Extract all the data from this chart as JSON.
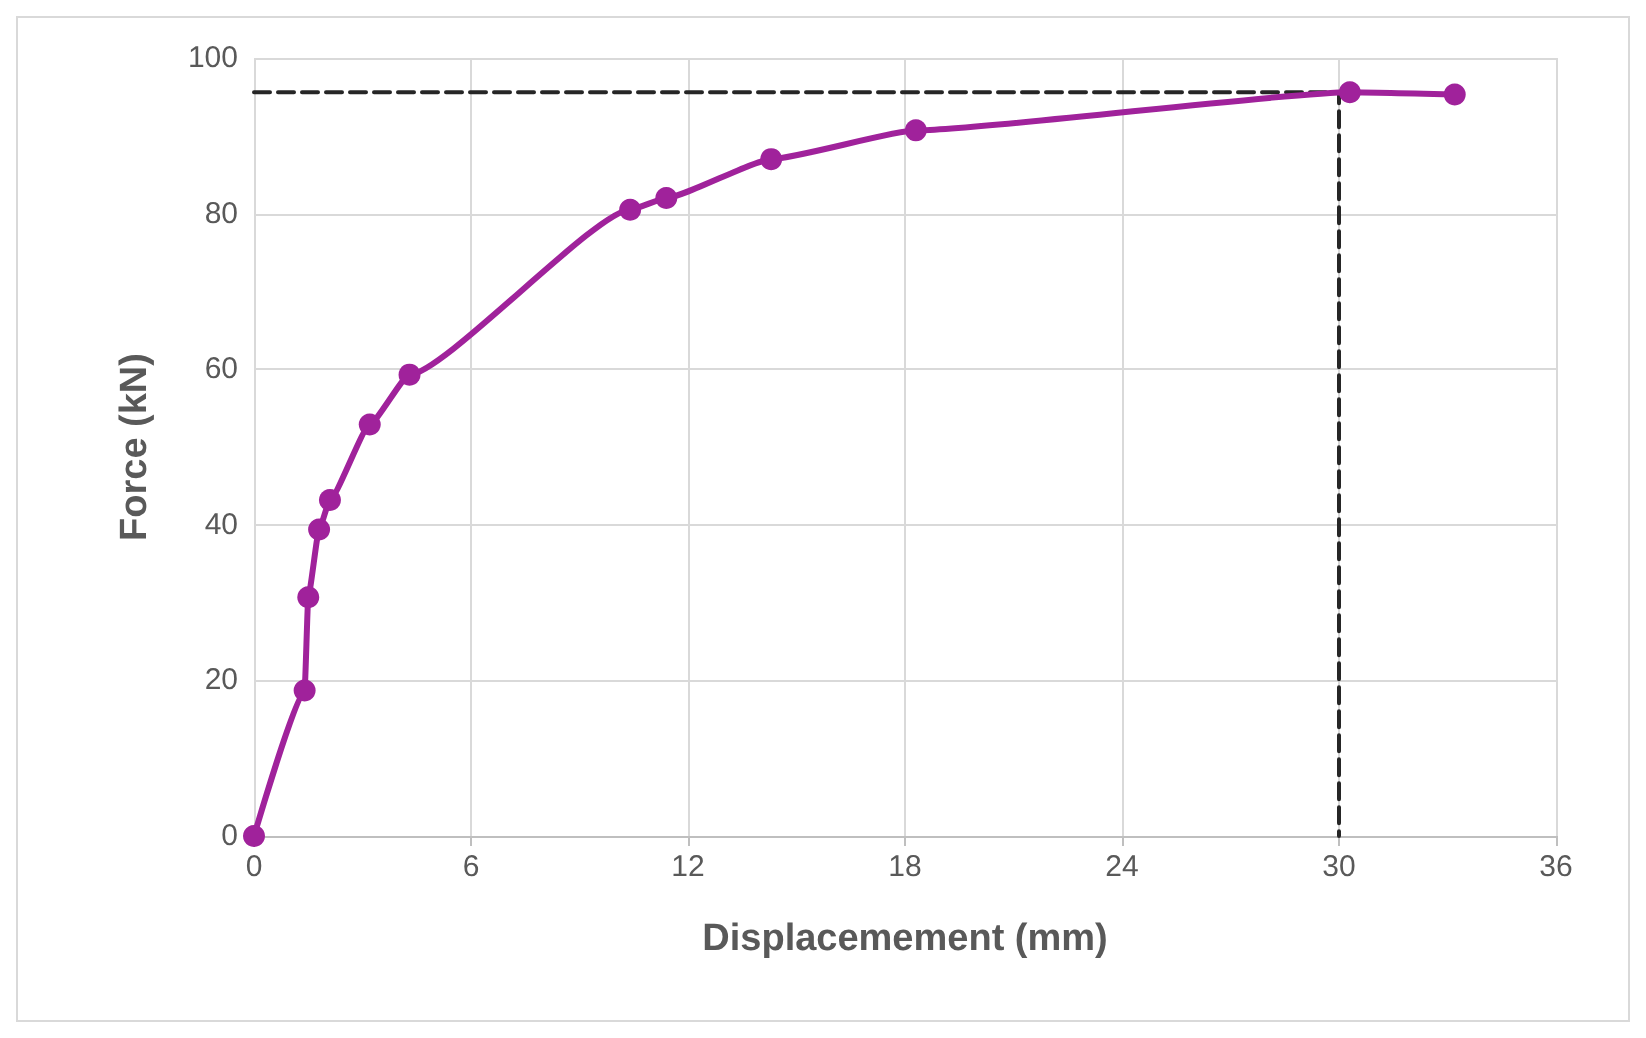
{
  "chart_data": {
    "type": "line",
    "xlabel": "Displacemement (mm)",
    "ylabel": "Force (kN)",
    "xlim": [
      0,
      36
    ],
    "xticks": [
      0,
      6,
      12,
      18,
      24,
      30,
      36
    ],
    "ylim": [
      0,
      100
    ],
    "yticks": [
      0,
      20,
      40,
      60,
      80,
      100
    ],
    "grid": true,
    "marker": "circle",
    "line_style": "solid",
    "series": [
      {
        "color": "#a0229b",
        "x": [
          0,
          1.4,
          1.5,
          1.8,
          2.1,
          3.2,
          4.3,
          10.4,
          11.4,
          14.3,
          18.3,
          30.3,
          33.2
        ],
        "values": [
          0,
          18.7,
          30.7,
          39.4,
          43.2,
          52.9,
          59.3,
          80.5,
          82.0,
          87.0,
          90.7,
          95.6,
          95.3
        ]
      },
      {
        "color": "#262626",
        "marker": "none",
        "line_style": "dashed",
        "x": [
          0,
          30,
          30
        ],
        "values": [
          95.6,
          95.6,
          0
        ]
      }
    ]
  }
}
